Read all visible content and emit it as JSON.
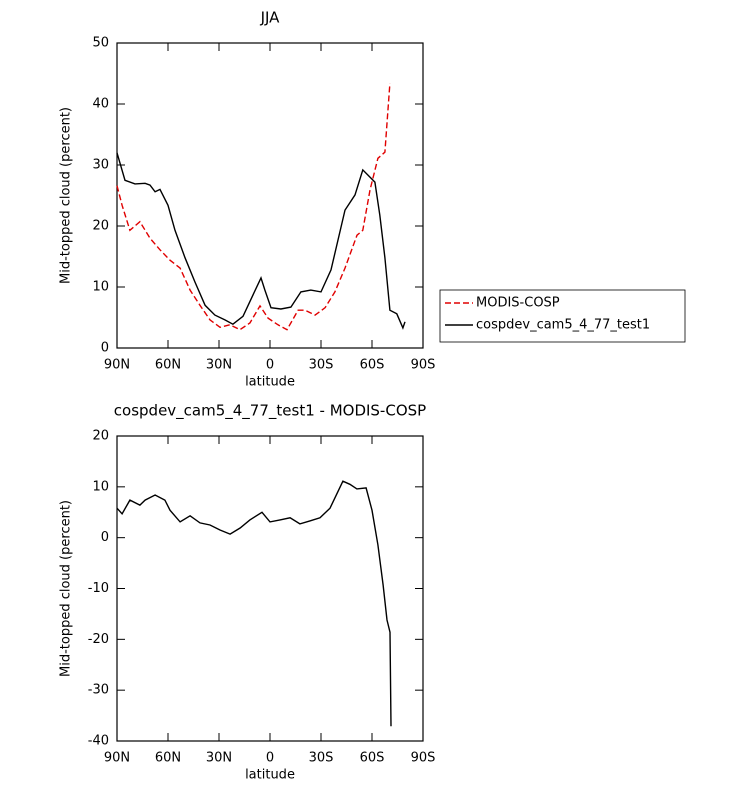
{
  "chart_data": [
    {
      "type": "line",
      "title": "JJA",
      "xlabel": "latitude",
      "ylabel": "Mid-topped cloud (percent)",
      "xlim": [
        90,
        -90
      ],
      "xticks": [
        {
          "value": 90,
          "label": "90N"
        },
        {
          "value": 60,
          "label": "60N"
        },
        {
          "value": 30,
          "label": "30N"
        },
        0,
        {
          "value": -30,
          "label": "30S"
        },
        {
          "value": -60,
          "label": "60S"
        },
        {
          "value": -90,
          "label": "90S"
        }
      ],
      "ylim": [
        0,
        50
      ],
      "yticks": [
        0,
        10,
        20,
        30,
        40,
        50
      ],
      "legend": "right",
      "series": [
        {
          "name": "MODIS-COSP",
          "color": "#e00000",
          "line_style": "dashed",
          "x": [
            90,
            87,
            82.4,
            76.5,
            70.6,
            64.7,
            58.8,
            52.9,
            47,
            41.2,
            35.3,
            29.4,
            23.6,
            17.7,
            11.8,
            5.9,
            1.2,
            -4.7,
            -10,
            -16.5,
            -20.6,
            -26.5,
            -32.4,
            -38.2,
            -44.1,
            -51.2,
            -54.6,
            -58.8,
            -63.5,
            -67.6,
            -70.5
          ],
          "values": [
            26.6,
            23.4,
            19.3,
            20.7,
            18,
            16.1,
            14.4,
            13.1,
            9.5,
            7,
            4.6,
            3.4,
            3.8,
            3,
            4.1,
            6.9,
            4.9,
            3.8,
            3,
            6.2,
            6.2,
            5.4,
            6.6,
            9.2,
            13.1,
            18.5,
            19.3,
            25.9,
            31.1,
            32.1,
            43.4
          ]
        },
        {
          "name": "cospdev_cam5_4_77_test1",
          "color": "#000000",
          "line_style": "solid",
          "x": [
            90,
            85.3,
            79.4,
            73.5,
            70.6,
            67.6,
            64.7,
            60,
            55.9,
            50,
            44.1,
            38.2,
            32.4,
            26.5,
            21.8,
            15.9,
            10,
            5.3,
            3,
            -0.6,
            -6.4,
            -12.3,
            -18.2,
            -24,
            -30,
            -35.9,
            -44.1,
            -50,
            -54.6,
            -61.7,
            -64.6,
            -67.6,
            -70.5,
            -74.6,
            -78.2,
            -79.4
          ],
          "values": [
            32,
            27.5,
            26.9,
            27,
            26.7,
            25.6,
            26,
            23.4,
            19.3,
            14.8,
            10.8,
            7,
            5.4,
            4.6,
            3.9,
            5.2,
            8.7,
            11.5,
            9.5,
            6.6,
            6.4,
            6.7,
            9.2,
            9.5,
            9.2,
            12.8,
            22.6,
            25.1,
            29.2,
            27.2,
            21.8,
            14.8,
            6.2,
            5.6,
            3.3,
            4.3
          ]
        }
      ]
    },
    {
      "type": "line",
      "title": "cospdev_cam5_4_77_test1 - MODIS-COSP",
      "xlabel": "latitude",
      "ylabel": "Mid-topped cloud (percent)",
      "xlim": [
        90,
        -90
      ],
      "xticks": [
        {
          "value": 90,
          "label": "90N"
        },
        {
          "value": 60,
          "label": "60N"
        },
        {
          "value": 30,
          "label": "30N"
        },
        0,
        {
          "value": -30,
          "label": "30S"
        },
        {
          "value": -60,
          "label": "60S"
        },
        {
          "value": -90,
          "label": "90S"
        }
      ],
      "ylim": [
        -40,
        20
      ],
      "yticks": [
        -40,
        -30,
        -20,
        -10,
        0,
        10,
        20
      ],
      "series": [
        {
          "color": "#000000",
          "line_style": "solid",
          "x": [
            90,
            87,
            82.4,
            76.5,
            73.5,
            67.6,
            61.8,
            58.8,
            52.9,
            47,
            41.2,
            35.3,
            29.4,
            23.5,
            17.6,
            11.8,
            4.7,
            0,
            -5.9,
            -11.8,
            -17.6,
            -23.5,
            -29.4,
            -35.3,
            -42.9,
            -47,
            -51.1,
            -56.5,
            -60,
            -63.5,
            -66.5,
            -68.8,
            -70.6,
            -71.2
          ],
          "values": [
            5.8,
            4.7,
            7.4,
            6.4,
            7.4,
            8.4,
            7.4,
            5.4,
            3.1,
            4.3,
            2.9,
            2.5,
            1.5,
            0.7,
            1.9,
            3.5,
            5,
            3.1,
            3.5,
            3.9,
            2.7,
            3.3,
            3.9,
            5.8,
            11.1,
            10.5,
            9.6,
            9.8,
            5.4,
            -1.4,
            -9.3,
            -16.2,
            -18.6,
            -37.1
          ]
        }
      ]
    }
  ]
}
